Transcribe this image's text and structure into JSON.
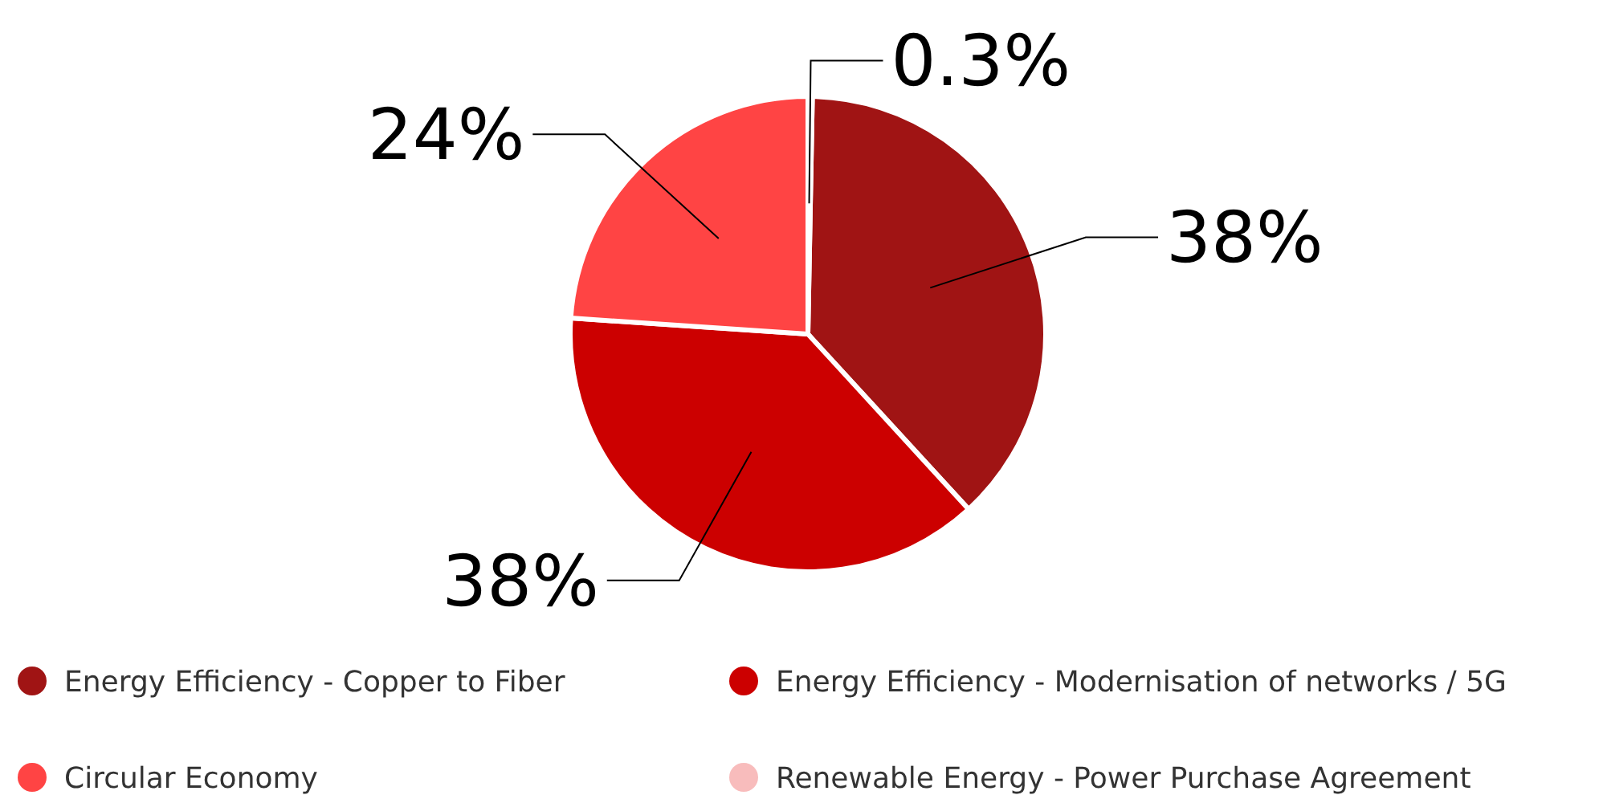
{
  "chart_data": {
    "type": "pie",
    "categories": [
      "Energy Efficiency - Copper to Fiber",
      "Energy Efficiency - Modernisation of networks / 5G",
      "Circular Economy",
      "Renewable Energy - Power Purchase Agreement"
    ],
    "values": [
      38,
      38,
      24,
      0.3
    ],
    "colors": [
      "#a01414",
      "#cc0000",
      "#ff4444",
      "#f8bcbc"
    ],
    "value_labels": [
      "38%",
      "38%",
      "24%",
      "0.3%"
    ],
    "legend": "bottom"
  }
}
